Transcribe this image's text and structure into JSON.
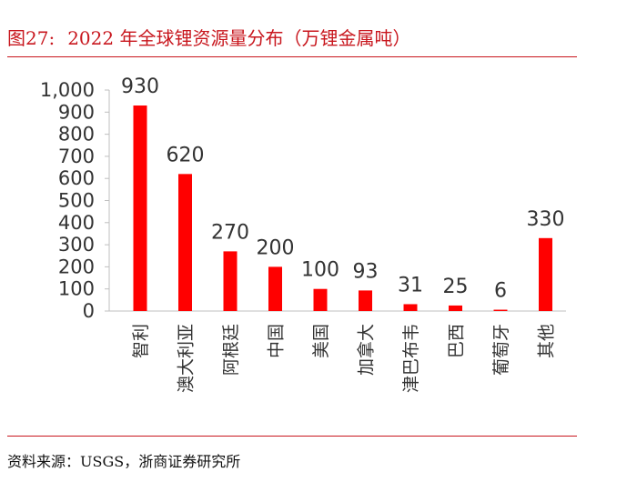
{
  "figure": {
    "number": "图27:",
    "title": "2022 年全球锂资源量分布（万锂金属吨）",
    "source": "资料来源：USGS，浙商证券研究所"
  },
  "colors": {
    "bar": "#ff0000",
    "accent": "#c8161d",
    "axis": "#bfbfbf",
    "text": "#333333"
  },
  "chart_data": {
    "type": "bar",
    "title": "2022 年全球锂资源量分布（万锂金属吨）",
    "xlabel": "",
    "ylabel": "",
    "ylim": [
      0,
      1000
    ],
    "yticks": [
      0,
      100,
      200,
      300,
      400,
      500,
      600,
      700,
      800,
      900,
      1000
    ],
    "ytick_labels": [
      "0",
      "100",
      "200",
      "300",
      "400",
      "500",
      "600",
      "700",
      "800",
      "900",
      "1,000"
    ],
    "grid": false,
    "legend": "none",
    "categories": [
      "智利",
      "澳大利亚",
      "阿根廷",
      "中国",
      "美国",
      "加拿大",
      "津巴布韦",
      "巴西",
      "葡萄牙",
      "其他"
    ],
    "values": [
      930,
      620,
      270,
      200,
      100,
      93,
      31,
      25,
      6,
      330
    ],
    "data_labels": [
      "930",
      "620",
      "270",
      "200",
      "100",
      "93",
      "31",
      "25",
      "6",
      "330"
    ]
  }
}
